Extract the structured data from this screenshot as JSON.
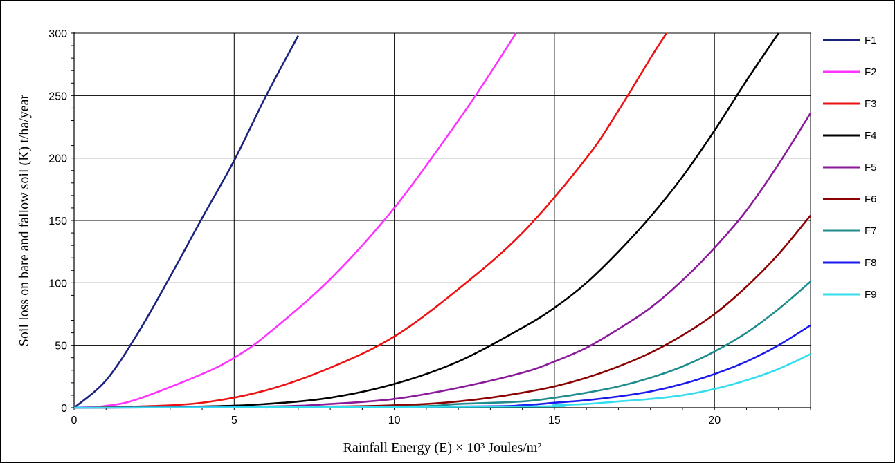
{
  "chart_data": {
    "type": "line",
    "xlabel": "Rainfall Energy (E) × 10³  Joules/m²",
    "ylabel": "Soil loss on bare and fallow soil (K) t/ha/year",
    "xlim": [
      0,
      23
    ],
    "ylim": [
      0,
      300
    ],
    "xticks": [
      0,
      5,
      10,
      15,
      20
    ],
    "yticks": [
      0,
      50,
      100,
      150,
      200,
      250,
      300
    ],
    "grid": true,
    "legend_position": "right",
    "series": [
      {
        "name": "F1",
        "color": "#1a237e",
        "x": [
          0,
          1,
          2,
          3,
          4,
          5,
          6,
          7
        ],
        "y": [
          0,
          22,
          60,
          105,
          152,
          198,
          250,
          298
        ]
      },
      {
        "name": "F2",
        "color": "#ff33ff",
        "x": [
          0,
          1,
          2,
          4,
          5,
          6,
          8,
          10,
          12,
          13,
          13.8
        ],
        "y": [
          0,
          1.5,
          7,
          27,
          40,
          58,
          103,
          160,
          230,
          268,
          300
        ]
      },
      {
        "name": "F3",
        "color": "#ee1111",
        "x": [
          0,
          2,
          4,
          6,
          8,
          10,
          12,
          14,
          16,
          17,
          18,
          18.5
        ],
        "y": [
          0,
          1,
          4,
          14,
          32,
          57,
          95,
          140,
          200,
          238,
          280,
          300
        ]
      },
      {
        "name": "F4",
        "color": "#000000",
        "x": [
          0,
          4,
          6,
          8,
          10,
          12,
          14,
          15,
          16,
          17,
          18,
          19,
          20,
          21,
          22
        ],
        "y": [
          0,
          1,
          3,
          8,
          19,
          37,
          64,
          80,
          100,
          125,
          153,
          185,
          222,
          262,
          300
        ]
      },
      {
        "name": "F5",
        "color": "#8b1a9b",
        "x": [
          0,
          6,
          8,
          10,
          12,
          14,
          15,
          16,
          17,
          18,
          19,
          20,
          21,
          22,
          23
        ],
        "y": [
          0,
          1,
          3,
          7,
          16,
          28,
          37,
          48,
          63,
          80,
          102,
          128,
          158,
          195,
          236
        ]
      },
      {
        "name": "F6",
        "color": "#8b0000",
        "x": [
          0,
          8,
          10,
          11,
          12,
          13,
          14,
          15,
          16,
          17,
          18,
          19,
          20,
          21,
          22,
          23
        ],
        "y": [
          0,
          1,
          2,
          3,
          5,
          8,
          12,
          17,
          24,
          33,
          44,
          58,
          75,
          97,
          123,
          154
        ]
      },
      {
        "name": "F7",
        "color": "#1e8c8c",
        "x": [
          0,
          10,
          12,
          14,
          15,
          16,
          17,
          18,
          19,
          20,
          21,
          22,
          23
        ],
        "y": [
          0,
          1,
          3,
          5,
          8,
          12,
          17,
          24,
          33,
          45,
          60,
          79,
          101
        ]
      },
      {
        "name": "F8",
        "color": "#1a1aee",
        "x": [
          0,
          12,
          14,
          15,
          16,
          17,
          18,
          19,
          20,
          21,
          22,
          23
        ],
        "y": [
          0,
          1,
          2,
          4,
          6,
          9,
          13,
          19,
          27,
          37,
          50,
          66
        ]
      },
      {
        "name": "F9",
        "color": "#33ddee",
        "x": [
          0,
          14,
          15,
          16,
          17,
          18,
          19,
          20,
          21,
          22,
          23
        ],
        "y": [
          0,
          1,
          2,
          3,
          5,
          7,
          10,
          15,
          22,
          31,
          43
        ]
      }
    ]
  }
}
